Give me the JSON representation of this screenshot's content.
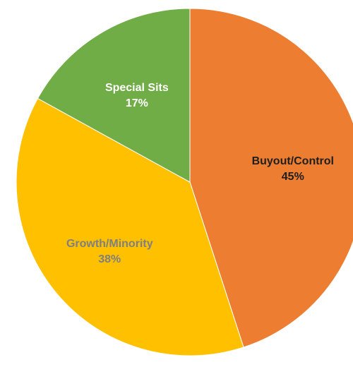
{
  "chart_data": {
    "type": "pie",
    "title": "",
    "start_angle_deg": 0,
    "direction": "clockwise",
    "slices": [
      {
        "label": "Buyout/Control",
        "value": 45,
        "value_label": "45%",
        "color": "#ED7D31",
        "label_color": "#1F1F1F"
      },
      {
        "label": "Growth/Minority",
        "value": 38,
        "value_label": "38%",
        "color": "#FFC000",
        "label_color": "#7F7F7F"
      },
      {
        "label": "Special Sits",
        "value": 17,
        "value_label": "17%",
        "color": "#70AD47",
        "label_color": "#FFFFFF"
      }
    ]
  }
}
